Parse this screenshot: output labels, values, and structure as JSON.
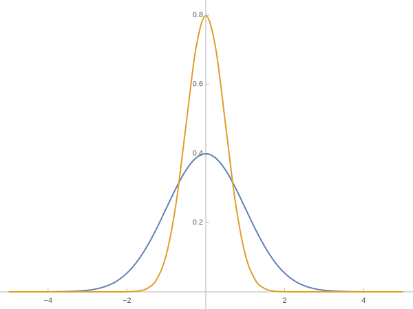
{
  "chart_data": {
    "type": "line",
    "x": [
      -5,
      -4.75,
      -4.5,
      -4.25,
      -4,
      -3.75,
      -3.5,
      -3.25,
      -3,
      -2.75,
      -2.5,
      -2.25,
      -2,
      -1.75,
      -1.5,
      -1.25,
      -1,
      -0.75,
      -0.5,
      -0.25,
      0,
      0.25,
      0.5,
      0.75,
      1,
      1.25,
      1.5,
      1.75,
      2,
      2.25,
      2.5,
      2.75,
      3,
      3.25,
      3.5,
      3.75,
      4,
      4.25,
      4.5,
      4.75,
      5
    ],
    "series": [
      {
        "color": "#5e81b5",
        "values": [
          0,
          0,
          0,
          0,
          0.0001,
          0.0004,
          0.0009,
          0.002,
          0.0044,
          0.0091,
          0.0175,
          0.0317,
          0.054,
          0.0863,
          0.1295,
          0.1826,
          0.242,
          0.3011,
          0.3521,
          0.3867,
          0.3989,
          0.3867,
          0.3521,
          0.3011,
          0.242,
          0.1826,
          0.1295,
          0.0863,
          0.054,
          0.0317,
          0.0175,
          0.0091,
          0.0044,
          0.002,
          0.0009,
          0.0004,
          0.0001,
          0,
          0,
          0,
          0
        ]
      },
      {
        "color": "#e19c24",
        "values": [
          0,
          0,
          0,
          0,
          0,
          0,
          0,
          0,
          0,
          0,
          0,
          0,
          0.0003,
          0.0017,
          0.0089,
          0.035,
          0.108,
          0.2591,
          0.4839,
          0.7041,
          0.7979,
          0.7041,
          0.4839,
          0.2591,
          0.108,
          0.035,
          0.0089,
          0.0017,
          0.0003,
          0,
          0,
          0,
          0,
          0,
          0,
          0,
          0,
          0,
          0,
          0,
          0
        ]
      }
    ],
    "xlim": [
      -5,
      5
    ],
    "xticks": [
      {
        "value": -4,
        "label": "−4"
      },
      {
        "value": -2,
        "label": "−2"
      },
      2,
      4
    ],
    "ylim": [
      0,
      0.8
    ],
    "yticks": [
      0.2,
      0.4,
      0.6,
      0.8
    ]
  }
}
